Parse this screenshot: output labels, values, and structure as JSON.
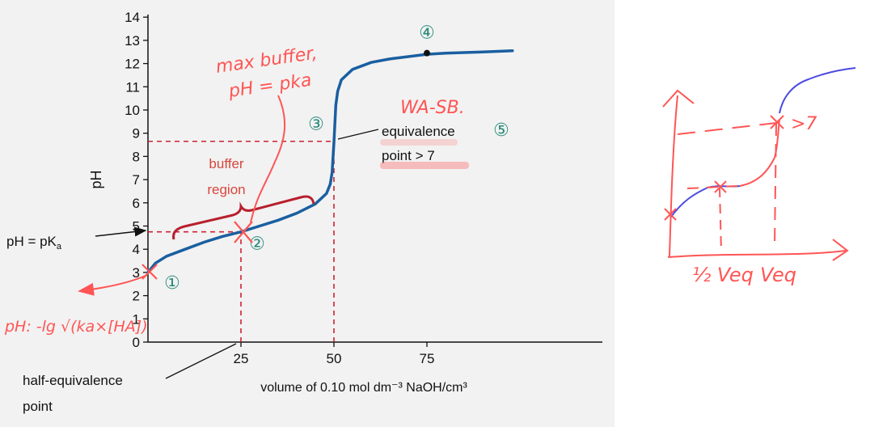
{
  "chart_data": {
    "type": "line",
    "title": "",
    "ylabel": "pH",
    "xlabel": "volume of 0.10 mol dm⁻³ NaOH/cm³",
    "ylim": [
      0,
      14
    ],
    "xlim": [
      0,
      100
    ],
    "yticks": [
      "0",
      "1",
      "2",
      "3",
      "4",
      "5",
      "6",
      "7",
      "8",
      "9",
      "10",
      "11",
      "12",
      "13",
      "14"
    ],
    "xticks": [
      "25",
      "50",
      "75"
    ],
    "grid": false,
    "series": [
      {
        "x": [
          0,
          2,
          5,
          10,
          15,
          20,
          25,
          30,
          35,
          40,
          45,
          48,
          49,
          49.5,
          50,
          50.5,
          51,
          52,
          55,
          60,
          65,
          70,
          75,
          80,
          90,
          98
        ],
        "y": [
          3.0,
          3.4,
          3.7,
          4.0,
          4.3,
          4.55,
          4.75,
          5.0,
          5.25,
          5.55,
          5.95,
          6.4,
          6.8,
          7.3,
          8.6,
          10.2,
          10.8,
          11.3,
          11.75,
          12.05,
          12.2,
          12.3,
          12.4,
          12.45,
          12.5,
          12.55
        ]
      }
    ],
    "reference_lines": [
      {
        "type": "h",
        "y": 4.75,
        "x_end": 25
      },
      {
        "type": "v",
        "x": 25,
        "y_end": 4.75
      },
      {
        "type": "h",
        "y": 8.65,
        "x_end": 50
      },
      {
        "type": "v",
        "x": 50,
        "y_end": 8.65
      }
    ],
    "points": [
      {
        "label": "①",
        "x": 0,
        "y": 3.0
      },
      {
        "label": "②",
        "x": 25,
        "y": 4.75
      },
      {
        "label": "③",
        "x": 50,
        "y": 8.65
      },
      {
        "label": "④",
        "x": 75,
        "y": 12.45
      },
      {
        "label": "⑤",
        "x": 50,
        "y": 8.65
      }
    ],
    "annotations": {
      "pka_label": "pH = pK",
      "pka_sub": "a",
      "buffer_line1": "buffer",
      "buffer_line2": "region",
      "equiv_line1": "equivalence",
      "equiv_line2": "point > 7",
      "half_line1": "half-equivalence",
      "half_line2": "point"
    }
  },
  "handwriting": {
    "max_buffer_line1": "max buffer,",
    "max_buffer_line2": "pH = pka",
    "wa_sb": "WA-SB.",
    "ph_formula": "pH: -lg √(ka×[HA])",
    "gt7": ">7",
    "half_veq": "½ Veq",
    "veq": "Veq"
  },
  "colors": {
    "curve": "#1a5fa0",
    "dashed": "#cc2233",
    "brace": "#b8202e",
    "annotation_red": "#d9463b",
    "circle_num": "#2a8a7a",
    "ink": "#ff5555",
    "sketch_blue": "#4a4ae0"
  }
}
